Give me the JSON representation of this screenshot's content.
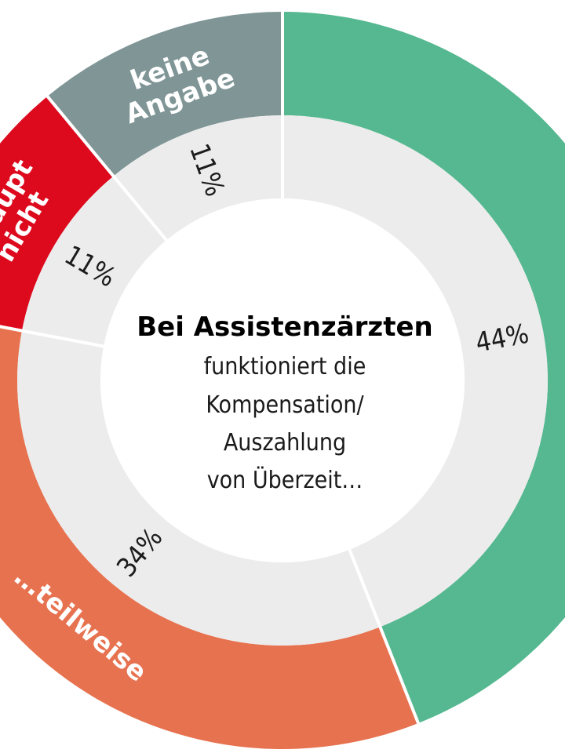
{
  "chart_data": {
    "type": "pie",
    "style": "donut",
    "title": "Bei Assistenzärzten",
    "subtitle_lines": [
      "funktioniert die",
      "Kompensation/",
      "Auszahlung",
      "von Überzeit…"
    ],
    "slices": [
      {
        "label": "…",
        "value": 44,
        "value_label": "44%",
        "color": "#55b890"
      },
      {
        "label": "…teilweise",
        "value": 34,
        "value_label": "34%",
        "color": "#e7724f"
      },
      {
        "label_lines": [
          "…haupt",
          "nicht"
        ],
        "value": 11,
        "value_label": "11%",
        "color": "#dd0a1e"
      },
      {
        "label_lines": [
          "keine",
          "Angabe"
        ],
        "value": 11,
        "value_label": "11%",
        "color": "#7f9596"
      }
    ],
    "inner_ring_color": "#ececec",
    "center_color": "#ffffff"
  }
}
